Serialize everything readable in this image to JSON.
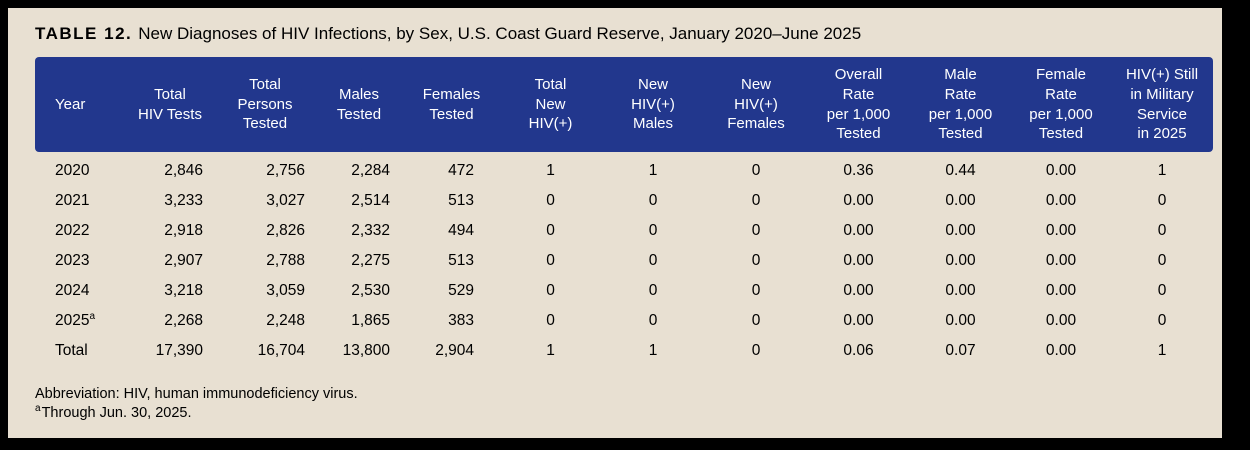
{
  "title": {
    "label": "TABLE 12.",
    "text": "New Diagnoses of HIV Infections, by Sex, U.S. Coast Guard Reserve, January 2020–June 2025"
  },
  "table": {
    "columns": [
      "Year",
      "Total\nHIV Tests",
      "Total\nPersons\nTested",
      "Males\nTested",
      "Females\nTested",
      "Total\nNew\nHIV(+)",
      "New\nHIV(+)\nMales",
      "New\nHIV(+)\nFemales",
      "Overall\nRate\nper 1,000\nTested",
      "Male\nRate\nper 1,000\nTested",
      "Female\nRate\nper 1,000\nTested",
      "HIV(+) Still\nin Military\nService\nin 2025"
    ],
    "rows": [
      {
        "year": "2020",
        "year_sup": "",
        "cells": [
          "2,846",
          "2,756",
          "2,284",
          "472",
          "1",
          "1",
          "0",
          "0.36",
          "0.44",
          "0.00",
          "1"
        ]
      },
      {
        "year": "2021",
        "year_sup": "",
        "cells": [
          "3,233",
          "3,027",
          "2,514",
          "513",
          "0",
          "0",
          "0",
          "0.00",
          "0.00",
          "0.00",
          "0"
        ]
      },
      {
        "year": "2022",
        "year_sup": "",
        "cells": [
          "2,918",
          "2,826",
          "2,332",
          "494",
          "0",
          "0",
          "0",
          "0.00",
          "0.00",
          "0.00",
          "0"
        ]
      },
      {
        "year": "2023",
        "year_sup": "",
        "cells": [
          "2,907",
          "2,788",
          "2,275",
          "513",
          "0",
          "0",
          "0",
          "0.00",
          "0.00",
          "0.00",
          "0"
        ]
      },
      {
        "year": "2024",
        "year_sup": "",
        "cells": [
          "3,218",
          "3,059",
          "2,530",
          "529",
          "0",
          "0",
          "0",
          "0.00",
          "0.00",
          "0.00",
          "0"
        ]
      },
      {
        "year": "2025",
        "year_sup": "a",
        "cells": [
          "2,268",
          "2,248",
          "1,865",
          "383",
          "0",
          "0",
          "0",
          "0.00",
          "0.00",
          "0.00",
          "0"
        ]
      },
      {
        "year": "Total",
        "year_sup": "",
        "cells": [
          "17,390",
          "16,704",
          "13,800",
          "2,904",
          "1",
          "1",
          "0",
          "0.06",
          "0.07",
          "0.00",
          "1"
        ]
      }
    ]
  },
  "footnotes": {
    "abbreviation": "Abbreviation: HIV, human immunodeficiency virus.",
    "note_a_marker": "a",
    "note_a_text": "Through Jun. 30, 2025."
  },
  "colors": {
    "header_bg": "#22378d",
    "header_text": "#ffffff",
    "panel_bg": "#e8e0d2",
    "frame": "#000000",
    "body_text": "#000000"
  }
}
